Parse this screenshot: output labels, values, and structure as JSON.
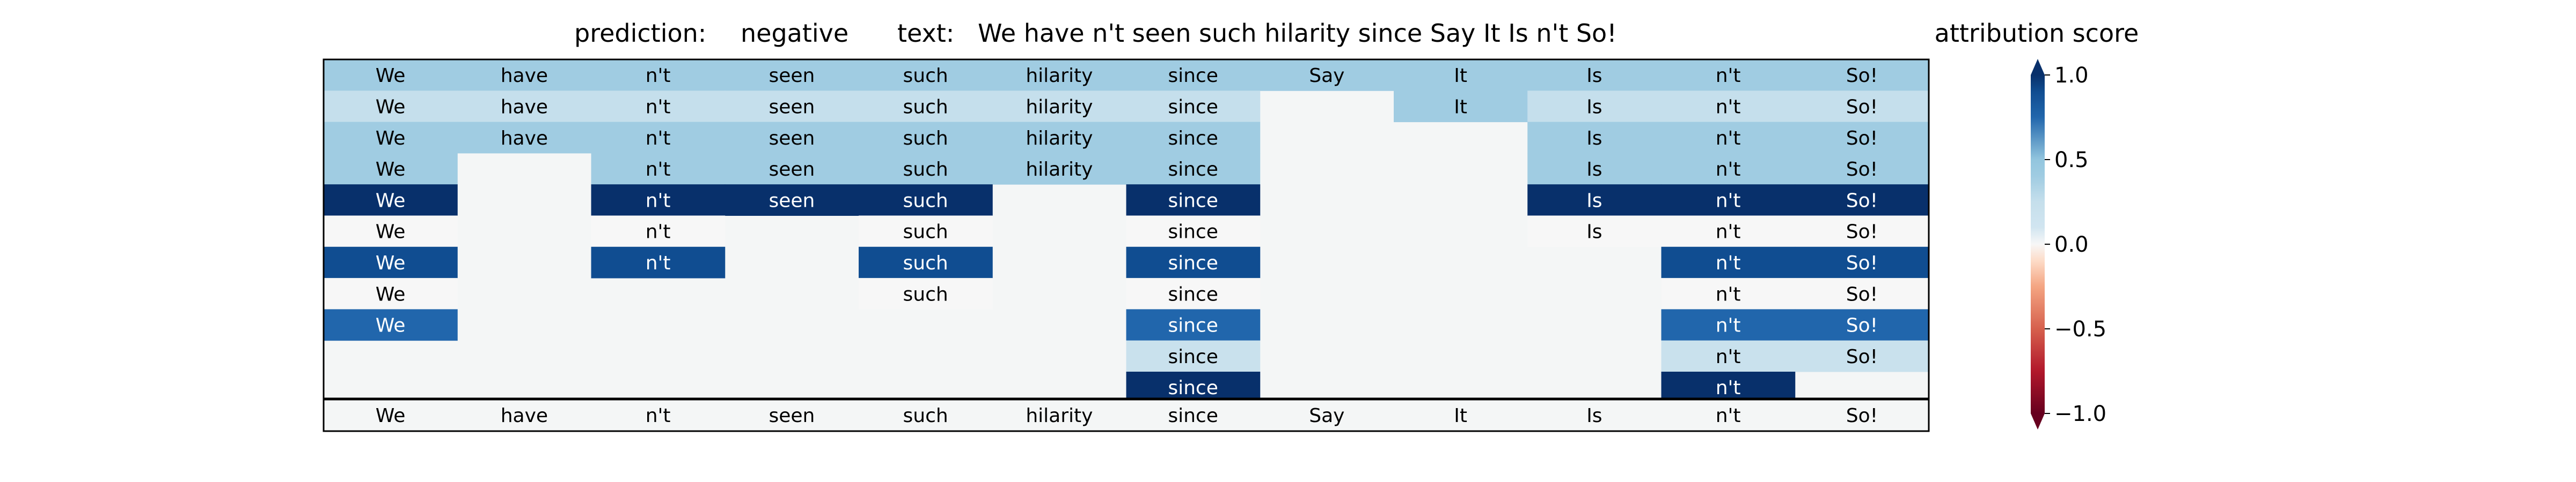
{
  "chart_data": {
    "type": "heatmap",
    "title_prediction_label": "prediction:",
    "title_prediction_value": "negative",
    "title_text_label": "text:",
    "title_text_value": "We have n't seen such hilarity since Say It Is n't So!",
    "tokens": [
      "We",
      "have",
      "n't",
      "seen",
      "such",
      "hilarity",
      "since",
      "Say",
      "It",
      "Is",
      "n't",
      "So!"
    ],
    "rows": [
      [
        0.4,
        0.4,
        0.4,
        0.4,
        0.4,
        0.4,
        0.4,
        0.4,
        0.4,
        0.4,
        0.4,
        0.4
      ],
      [
        0.25,
        0.25,
        0.25,
        0.25,
        0.25,
        0.25,
        0.25,
        null,
        0.4,
        0.25,
        0.25,
        0.25
      ],
      [
        0.4,
        0.4,
        0.4,
        0.4,
        0.4,
        0.4,
        0.4,
        null,
        null,
        0.4,
        0.4,
        0.4
      ],
      [
        0.4,
        null,
        0.4,
        0.4,
        0.4,
        0.4,
        0.4,
        null,
        null,
        0.4,
        0.4,
        0.4
      ],
      [
        1.0,
        null,
        1.0,
        1.0,
        1.0,
        null,
        1.0,
        null,
        null,
        1.0,
        1.0,
        1.0
      ],
      [
        0.0,
        null,
        0.0,
        null,
        0.0,
        null,
        0.0,
        null,
        null,
        0.0,
        0.0,
        0.0
      ],
      [
        0.9,
        null,
        0.9,
        null,
        0.9,
        null,
        0.9,
        null,
        null,
        null,
        0.9,
        0.9
      ],
      [
        0.0,
        null,
        null,
        null,
        0.0,
        null,
        0.0,
        null,
        null,
        null,
        0.0,
        0.0
      ],
      [
        0.75,
        null,
        null,
        null,
        null,
        null,
        0.75,
        null,
        null,
        null,
        0.75,
        0.75
      ],
      [
        null,
        null,
        null,
        null,
        null,
        null,
        0.2,
        null,
        null,
        null,
        0.2,
        0.2
      ],
      [
        null,
        null,
        null,
        null,
        null,
        null,
        1.0,
        null,
        null,
        null,
        1.0,
        null
      ]
    ],
    "colorbar": {
      "label": "attribution score",
      "min": -1.0,
      "max": 1.0,
      "ticks": [
        1.0,
        0.5,
        0.0,
        -0.5,
        -1.0
      ],
      "tick_labels": [
        "1.0",
        "0.5",
        "0.0",
        "−0.5",
        "−1.0"
      ],
      "colormap": "RdBu"
    },
    "grid": false
  }
}
